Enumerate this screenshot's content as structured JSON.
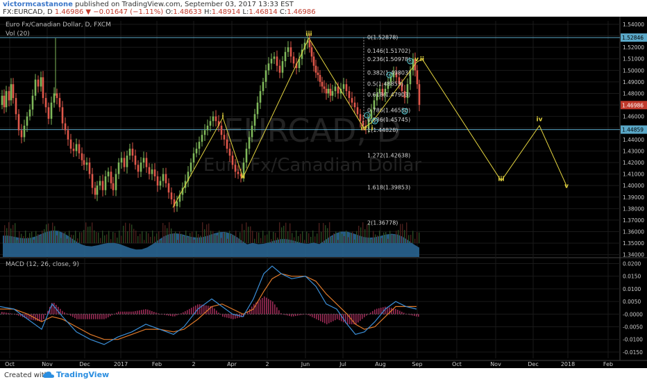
{
  "header": {
    "author": "victormcastanone",
    "published": "published on TradingView.com, September 03, 2017 13:33 EST",
    "symbol": "FX:EURCAD, D",
    "last": "1.46986",
    "change": "−0.01647 (−1.11%)",
    "o_label": "O:",
    "o_value": "1.48633",
    "h_label": "H:",
    "h_value": "1.48914",
    "l_label": "L:",
    "l_value": "1.46814",
    "c_label": "C:",
    "c_value": "1.46986"
  },
  "legend": {
    "title": "Euro Fx/Canadian Dollar, D, FXCM",
    "vol": "Vol (20)",
    "macd": "MACD (12, 26, close, 9)"
  },
  "watermark": {
    "line1": "EURCAD, D",
    "line2": "Euro Fx/Canadian Dollar"
  },
  "footer": {
    "created": "Created with",
    "brand": "TradingView"
  },
  "colors": {
    "up": "#7fb85a",
    "down": "#e0574a",
    "wave": "#e6d640",
    "fib": "#d8d8d8",
    "level": "#5aa8c8",
    "volume": "#2c6a9a",
    "macd": "#3b8fd8",
    "signal": "#e07a2a",
    "hist": "#9a2a55"
  },
  "chart_data": [
    {
      "type": "candlestick",
      "title": "Euro Fx/Canadian Dollar, D, FXCM",
      "x_ticks": [
        "Oct",
        "Nov",
        "Dec",
        "2017",
        "Feb",
        "2",
        "Apr",
        "2",
        "Jun",
        "Jul",
        "Aug",
        "Sep",
        "Oct",
        "Nov",
        "Dec",
        "2018",
        "Feb"
      ],
      "y_ticks": [
        "1.54000",
        "1.53000",
        "1.52000",
        "1.51000",
        "1.50000",
        "1.49000",
        "1.48000",
        "1.47000",
        "1.46000",
        "1.45000",
        "1.44000",
        "1.43000",
        "1.42000",
        "1.41000",
        "1.40000",
        "1.39000",
        "1.38000",
        "1.37000",
        "1.36000",
        "1.35000",
        "1.34000"
      ],
      "ylim": [
        1.338,
        1.543
      ],
      "price_labels": {
        "level_high": "1.52846",
        "current": "1.46986",
        "level_low": "1.44859"
      },
      "price_series": [
        [
          0,
          1.47
        ],
        [
          3,
          1.478
        ],
        [
          6,
          1.468
        ],
        [
          9,
          1.482
        ],
        [
          13,
          1.474
        ],
        [
          16,
          1.488
        ],
        [
          19,
          1.476
        ],
        [
          23,
          1.462
        ],
        [
          27,
          1.448
        ],
        [
          31,
          1.442
        ],
        [
          35,
          1.452
        ],
        [
          39,
          1.46
        ],
        [
          43,
          1.466
        ],
        [
          47,
          1.478
        ],
        [
          51,
          1.492
        ],
        [
          55,
          1.486
        ],
        [
          59,
          1.494
        ],
        [
          62,
          1.476
        ],
        [
          66,
          1.468
        ],
        [
          70,
          1.458
        ],
        [
          74,
          1.472
        ],
        [
          78,
          1.48
        ],
        [
          82,
          1.476
        ],
        [
          86,
          1.468
        ],
        [
          90,
          1.454
        ],
        [
          94,
          1.448
        ],
        [
          98,
          1.44
        ],
        [
          102,
          1.432
        ],
        [
          106,
          1.43
        ],
        [
          110,
          1.436
        ],
        [
          114,
          1.428
        ],
        [
          118,
          1.422
        ],
        [
          121,
          1.418
        ],
        [
          125,
          1.42
        ],
        [
          129,
          1.41
        ],
        [
          133,
          1.398
        ],
        [
          137,
          1.392
        ],
        [
          140,
          1.4
        ],
        [
          144,
          1.404
        ],
        [
          148,
          1.396
        ],
        [
          152,
          1.408
        ],
        [
          156,
          1.412
        ],
        [
          160,
          1.402
        ],
        [
          163,
          1.396
        ],
        [
          167,
          1.41
        ],
        [
          171,
          1.42
        ],
        [
          175,
          1.424
        ],
        [
          179,
          1.416
        ],
        [
          183,
          1.426
        ],
        [
          187,
          1.432
        ],
        [
          191,
          1.426
        ],
        [
          195,
          1.418
        ],
        [
          199,
          1.412
        ],
        [
          203,
          1.42
        ],
        [
          207,
          1.424
        ],
        [
          211,
          1.416
        ],
        [
          215,
          1.41
        ],
        [
          219,
          1.414
        ],
        [
          223,
          1.408
        ],
        [
          227,
          1.4
        ],
        [
          231,
          1.404
        ],
        [
          235,
          1.41
        ],
        [
          239,
          1.402
        ],
        [
          243,
          1.394
        ],
        [
          247,
          1.388
        ],
        [
          251,
          1.382
        ],
        [
          255,
          1.386
        ],
        [
          259,
          1.392
        ],
        [
          263,
          1.398
        ],
        [
          267,
          1.404
        ],
        [
          271,
          1.412
        ],
        [
          275,
          1.42
        ],
        [
          279,
          1.428
        ],
        [
          283,
          1.432
        ],
        [
          287,
          1.438
        ],
        [
          291,
          1.444
        ],
        [
          295,
          1.448
        ],
        [
          299,
          1.452
        ],
        [
          303,
          1.456
        ],
        [
          307,
          1.46
        ],
        [
          311,
          1.456
        ],
        [
          315,
          1.452
        ],
        [
          319,
          1.444
        ],
        [
          323,
          1.44
        ],
        [
          327,
          1.432
        ],
        [
          331,
          1.426
        ],
        [
          335,
          1.418
        ],
        [
          339,
          1.412
        ],
        [
          343,
          1.41
        ],
        [
          347,
          1.408
        ],
        [
          351,
          1.42
        ],
        [
          355,
          1.432
        ],
        [
          359,
          1.442
        ],
        [
          363,
          1.452
        ],
        [
          367,
          1.462
        ],
        [
          371,
          1.472
        ],
        [
          375,
          1.482
        ],
        [
          379,
          1.49
        ],
        [
          383,
          1.5
        ],
        [
          387,
          1.506
        ],
        [
          391,
          1.51
        ],
        [
          395,
          1.512
        ],
        [
          399,
          1.504
        ],
        [
          403,
          1.498
        ],
        [
          407,
          1.508
        ],
        [
          411,
          1.516
        ],
        [
          415,
          1.52
        ],
        [
          419,
          1.512
        ],
        [
          423,
          1.506
        ],
        [
          427,
          1.502
        ],
        [
          431,
          1.51
        ],
        [
          435,
          1.518
        ],
        [
          439,
          1.524
        ],
        [
          443,
          1.526
        ],
        [
          446,
          1.52
        ],
        [
          449,
          1.512
        ],
        [
          452,
          1.504
        ],
        [
          455,
          1.498
        ],
        [
          458,
          1.496
        ],
        [
          461,
          1.49
        ],
        [
          464,
          1.486
        ],
        [
          467,
          1.484
        ],
        [
          470,
          1.48
        ],
        [
          473,
          1.484
        ],
        [
          476,
          1.478
        ],
        [
          479,
          1.482
        ],
        [
          483,
          1.486
        ],
        [
          487,
          1.48
        ],
        [
          491,
          1.484
        ],
        [
          495,
          1.488
        ],
        [
          499,
          1.482
        ],
        [
          503,
          1.476
        ],
        [
          507,
          1.472
        ],
        [
          511,
          1.468
        ],
        [
          515,
          1.462
        ],
        [
          519,
          1.456
        ],
        [
          523,
          1.452
        ],
        [
          527,
          1.45
        ],
        [
          531,
          1.458
        ],
        [
          535,
          1.466
        ],
        [
          539,
          1.474
        ],
        [
          543,
          1.48
        ],
        [
          547,
          1.484
        ],
        [
          551,
          1.478
        ],
        [
          555,
          1.484
        ],
        [
          559,
          1.49
        ],
        [
          563,
          1.494
        ],
        [
          567,
          1.498
        ],
        [
          571,
          1.494
        ],
        [
          575,
          1.488
        ],
        [
          579,
          1.482
        ],
        [
          583,
          1.476
        ],
        [
          587,
          1.488
        ],
        [
          591,
          1.5
        ],
        [
          595,
          1.51
        ],
        [
          598,
          1.5
        ],
        [
          601,
          1.488
        ],
        [
          604,
          1.47
        ]
      ],
      "wave_labels": [
        {
          "text": "i",
          "x": 321,
          "y": 1.459
        },
        {
          "text": "ii",
          "x": 350,
          "y": 1.406
        },
        {
          "text": "iii",
          "x": 445,
          "y": 1.53
        },
        {
          "text": "iv",
          "x": 524,
          "y": 1.448
        },
        {
          "text": "i",
          "x": 536,
          "y": 1.448
        },
        {
          "text": "v",
          "x": 600,
          "y": 1.508
        },
        {
          "text": "ii",
          "x": 608,
          "y": 1.508
        },
        {
          "text": "iii",
          "x": 722,
          "y": 1.404
        },
        {
          "text": "iv",
          "x": 777,
          "y": 1.456
        },
        {
          "text": "v",
          "x": 816,
          "y": 1.398
        }
      ],
      "fib_levels": [
        {
          "label": "0(1.52878)",
          "value": 1.52878
        },
        {
          "label": "0.146(1.51702)",
          "value": 1.51702
        },
        {
          "label": "0.236(1.50978)",
          "value": 1.50978
        },
        {
          "label": "0.382(1.49803)",
          "value": 1.49803
        },
        {
          "label": "0.5(1.48853)",
          "value": 1.48853
        },
        {
          "label": "0.618(1.47903)",
          "value": 1.47903
        },
        {
          "label": "0.786(1.46550)",
          "value": 1.4655
        },
        {
          "label": "0.886(1.45745)",
          "value": 1.45745
        },
        {
          "label": "1(1.44828)",
          "value": 1.44828
        },
        {
          "label": "1.272(1.42638)",
          "value": 1.42638
        },
        {
          "label": "1.618(1.39853)",
          "value": 1.39853
        },
        {
          "label": "2(1.36778)",
          "value": 1.36778
        }
      ],
      "sub_wave_labels": [
        "1",
        "2",
        "3",
        "4",
        "5"
      ],
      "wave_path": [
        [
          249,
          1.381
        ],
        [
          321,
          1.459
        ],
        [
          350,
          1.407
        ],
        [
          445,
          1.528
        ],
        [
          524,
          1.45
        ],
        [
          536,
          1.455
        ],
        [
          600,
          1.507
        ],
        [
          608,
          1.51
        ],
        [
          722,
          1.404
        ],
        [
          777,
          1.452
        ],
        [
          816,
          1.4
        ]
      ]
    },
    {
      "type": "line",
      "title": "MACD (12, 26, close, 9)",
      "y_ticks": [
        "0.0200",
        "0.0150",
        "0.0100",
        "0.0050",
        "-0.0000",
        "-0.0050",
        "-0.0100",
        "-0.0150"
      ],
      "ylim": [
        -0.0175,
        0.0215
      ],
      "series": [
        {
          "name": "MACD",
          "values": [
            [
              0,
              0.003
            ],
            [
              20,
              0.002
            ],
            [
              40,
              -0.002
            ],
            [
              60,
              -0.006
            ],
            [
              75,
              0.004
            ],
            [
              90,
              -0.001
            ],
            [
              110,
              -0.007
            ],
            [
              130,
              -0.01
            ],
            [
              150,
              -0.012
            ],
            [
              170,
              -0.009
            ],
            [
              190,
              -0.007
            ],
            [
              210,
              -0.004
            ],
            [
              230,
              -0.006
            ],
            [
              250,
              -0.008
            ],
            [
              265,
              -0.005
            ],
            [
              285,
              0.002
            ],
            [
              305,
              0.006
            ],
            [
              320,
              0.003
            ],
            [
              335,
              0.0
            ],
            [
              350,
              -0.001
            ],
            [
              365,
              0.006
            ],
            [
              380,
              0.016
            ],
            [
              392,
              0.019
            ],
            [
              405,
              0.016
            ],
            [
              420,
              0.014
            ],
            [
              440,
              0.015
            ],
            [
              455,
              0.011
            ],
            [
              470,
              0.004
            ],
            [
              485,
              0.002
            ],
            [
              500,
              -0.004
            ],
            [
              512,
              -0.008
            ],
            [
              525,
              -0.007
            ],
            [
              540,
              -0.003
            ],
            [
              555,
              0.002
            ],
            [
              570,
              0.005
            ],
            [
              585,
              0.003
            ],
            [
              600,
              0.002
            ]
          ]
        },
        {
          "name": "Signal",
          "values": [
            [
              0,
              0.002
            ],
            [
              20,
              0.002
            ],
            [
              40,
              0.0
            ],
            [
              60,
              -0.003
            ],
            [
              75,
              -0.001
            ],
            [
              90,
              -0.002
            ],
            [
              110,
              -0.005
            ],
            [
              130,
              -0.008
            ],
            [
              150,
              -0.01
            ],
            [
              170,
              -0.01
            ],
            [
              190,
              -0.008
            ],
            [
              210,
              -0.006
            ],
            [
              230,
              -0.006
            ],
            [
              250,
              -0.007
            ],
            [
              265,
              -0.006
            ],
            [
              285,
              -0.002
            ],
            [
              305,
              0.003
            ],
            [
              320,
              0.004
            ],
            [
              335,
              0.002
            ],
            [
              350,
              0.0
            ],
            [
              365,
              0.002
            ],
            [
              380,
              0.009
            ],
            [
              392,
              0.014
            ],
            [
              405,
              0.016
            ],
            [
              420,
              0.015
            ],
            [
              440,
              0.015
            ],
            [
              455,
              0.013
            ],
            [
              470,
              0.008
            ],
            [
              485,
              0.004
            ],
            [
              500,
              0.0
            ],
            [
              512,
              -0.004
            ],
            [
              525,
              -0.006
            ],
            [
              540,
              -0.005
            ],
            [
              555,
              -0.001
            ],
            [
              570,
              0.003
            ],
            [
              585,
              0.003
            ],
            [
              600,
              0.003
            ]
          ]
        }
      ]
    }
  ]
}
